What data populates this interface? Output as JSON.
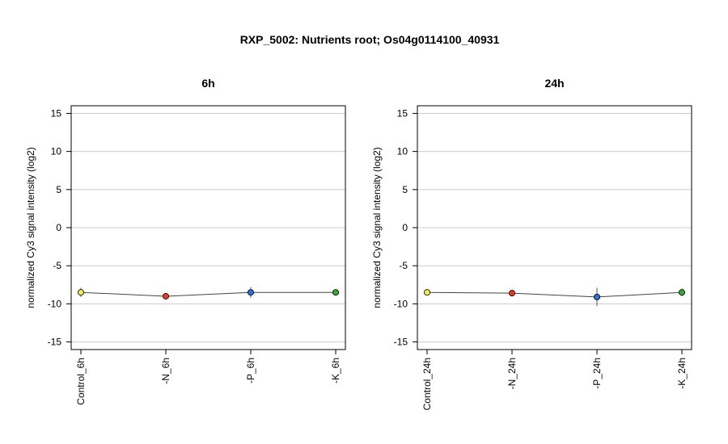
{
  "title": "RXP_5002: Nutrients root; Os04g0114100_40931",
  "chart_data": [
    {
      "type": "line",
      "title": "6h",
      "ylabel": "normalized Cy3 signal intensity (log2)",
      "ylim": [
        -16,
        16
      ],
      "yticks": [
        -15,
        -10,
        -5,
        0,
        5,
        10,
        15
      ],
      "grid": true,
      "categories": [
        "Control_6h",
        "-N_6h",
        "-P_6h",
        "-K_6h"
      ],
      "values": [
        -8.5,
        -9.0,
        -8.5,
        -8.5
      ],
      "errors": [
        0.6,
        0.2,
        0.7,
        0.3
      ],
      "colors": [
        "#f2e85a",
        "#e63b24",
        "#2f6ee0",
        "#3aa832"
      ]
    },
    {
      "type": "line",
      "title": "24h",
      "ylabel": "normalized Cy3 signal intensity (log2)",
      "ylim": [
        -16,
        16
      ],
      "yticks": [
        -15,
        -10,
        -5,
        0,
        5,
        10,
        15
      ],
      "grid": true,
      "categories": [
        "Control_24h",
        "-N_24h",
        "-P_24h",
        "-K_24h"
      ],
      "values": [
        -8.5,
        -8.6,
        -9.1,
        -8.5
      ],
      "errors": [
        0.3,
        0.4,
        1.2,
        0.5
      ],
      "colors": [
        "#f2e85a",
        "#e63b24",
        "#2f6ee0",
        "#3aa832"
      ]
    }
  ]
}
